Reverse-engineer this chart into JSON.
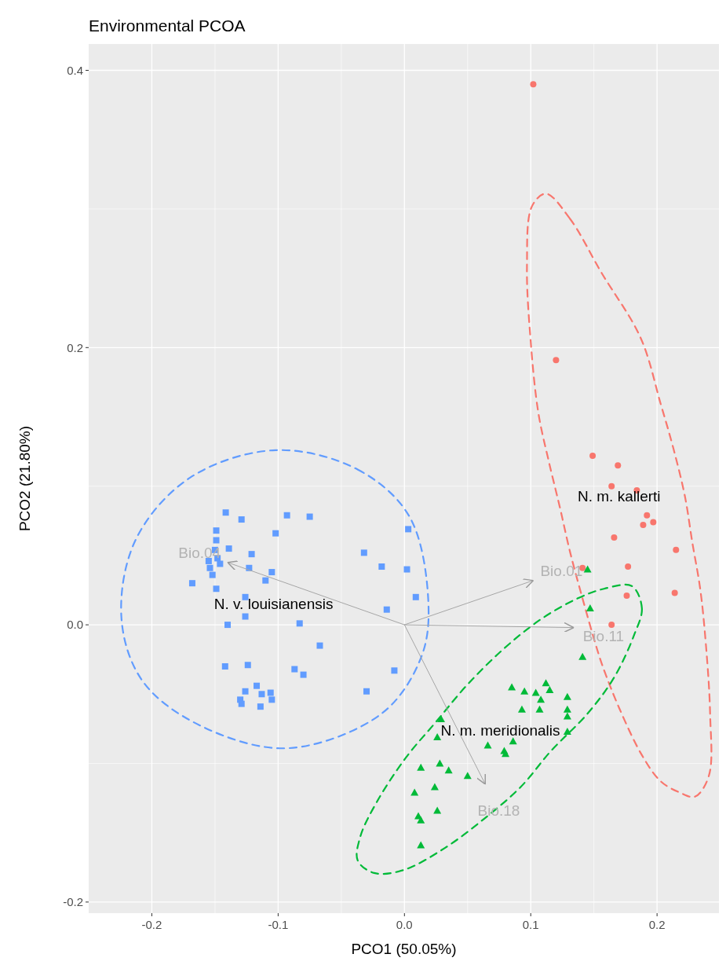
{
  "chart_data": {
    "type": "scatter",
    "title": "Environmental PCOA",
    "xlabel": "PCO1 (50.05%)",
    "ylabel": "PCO2 (21.80%)",
    "xlim": [
      -0.25,
      0.249
    ],
    "ylim": [
      -0.208,
      0.419
    ],
    "xticks": [
      {
        "value": -0.2,
        "label": "-0.2"
      },
      {
        "value": -0.1,
        "label": "-0.1"
      },
      {
        "value": 0,
        "label": "0.0"
      },
      {
        "value": 0.1,
        "label": "0.1"
      },
      {
        "value": 0.2,
        "label": "0.2"
      }
    ],
    "yticks": [
      {
        "value": -0.2,
        "label": "-0.2"
      },
      {
        "value": 0,
        "label": "0.0"
      },
      {
        "value": 0.2,
        "label": "0.2"
      },
      {
        "value": 0.4,
        "label": "0.4"
      }
    ],
    "grid": true,
    "series": [
      {
        "name": "N. m. kallerti",
        "color": "#f8766d",
        "marker": "circle",
        "x": [
          0.102,
          0.12,
          0.149,
          0.169,
          0.164,
          0.184,
          0.192,
          0.197,
          0.189,
          0.166,
          0.215,
          0.141,
          0.177,
          0.176,
          0.214,
          0.164
        ],
        "values": [
          0.39,
          0.191,
          0.122,
          0.115,
          0.1,
          0.097,
          0.079,
          0.074,
          0.072,
          0.063,
          0.054,
          0.041,
          0.042,
          0.021,
          0.023,
          0.0
        ]
      },
      {
        "name": "N. m. meridionalis",
        "color": "#00ba38",
        "marker": "triangle",
        "x": [
          0.145,
          0.147,
          0.141,
          0.085,
          0.095,
          0.104,
          0.112,
          0.115,
          0.108,
          0.129,
          0.093,
          0.107,
          0.129,
          0.129,
          0.029,
          0.086,
          0.066,
          0.079,
          0.08,
          0.026,
          0.013,
          0.028,
          0.035,
          0.05,
          0.008,
          0.024,
          0.026,
          0.011,
          0.013,
          0.013,
          0.129
        ],
        "values": [
          0.04,
          0.012,
          -0.023,
          -0.045,
          -0.048,
          -0.049,
          -0.042,
          -0.047,
          -0.054,
          -0.052,
          -0.061,
          -0.061,
          -0.061,
          -0.066,
          -0.068,
          -0.084,
          -0.087,
          -0.091,
          -0.093,
          -0.081,
          -0.103,
          -0.1,
          -0.105,
          -0.109,
          -0.121,
          -0.117,
          -0.134,
          -0.138,
          -0.141,
          -0.159,
          -0.077
        ]
      },
      {
        "name": "N. v. louisianensis",
        "color": "#619cff",
        "marker": "square",
        "x": [
          -0.1415,
          -0.129,
          -0.093,
          -0.075,
          -0.149,
          -0.102,
          -0.149,
          -0.139,
          -0.15,
          -0.121,
          -0.032,
          0.003,
          -0.018,
          0.002,
          -0.123,
          -0.105,
          -0.11,
          -0.168,
          -0.149,
          -0.152,
          -0.154,
          -0.148,
          -0.155,
          -0.146,
          -0.126,
          -0.126,
          -0.14,
          -0.083,
          0.009,
          -0.014,
          -0.067,
          -0.142,
          -0.124,
          -0.087,
          -0.08,
          -0.008,
          -0.03,
          -0.117,
          -0.113,
          -0.106,
          -0.105,
          -0.126,
          -0.13,
          -0.129,
          -0.114
        ],
        "values": [
          0.081,
          0.076,
          0.079,
          0.078,
          0.068,
          0.066,
          0.061,
          0.055,
          0.054,
          0.051,
          0.052,
          0.069,
          0.042,
          0.04,
          0.041,
          0.038,
          0.032,
          0.03,
          0.026,
          0.036,
          0.041,
          0.048,
          0.046,
          0.044,
          0.02,
          0.006,
          0.0,
          0.001,
          0.02,
          0.011,
          -0.015,
          -0.03,
          -0.029,
          -0.032,
          -0.036,
          -0.033,
          -0.048,
          -0.044,
          -0.05,
          -0.049,
          -0.054,
          -0.048,
          -0.054,
          -0.057,
          -0.059
        ]
      },
      {
        "type": "line",
        "name": "Bio.04",
        "color": "#a6a6a6",
        "x": [
          0,
          -0.14
        ],
        "values": [
          0,
          0.045
        ]
      },
      {
        "type": "line",
        "name": "Bio.01",
        "color": "#a6a6a6",
        "x": [
          0,
          0.102
        ],
        "values": [
          0,
          0.032
        ]
      },
      {
        "type": "line",
        "name": "Bio.11",
        "color": "#a6a6a6",
        "x": [
          0,
          0.134
        ],
        "values": [
          0,
          -0.002
        ]
      },
      {
        "type": "line",
        "name": "Bio.18",
        "color": "#a6a6a6",
        "x": [
          0,
          0.064
        ],
        "values": [
          0,
          -0.115
        ]
      }
    ]
  }
}
